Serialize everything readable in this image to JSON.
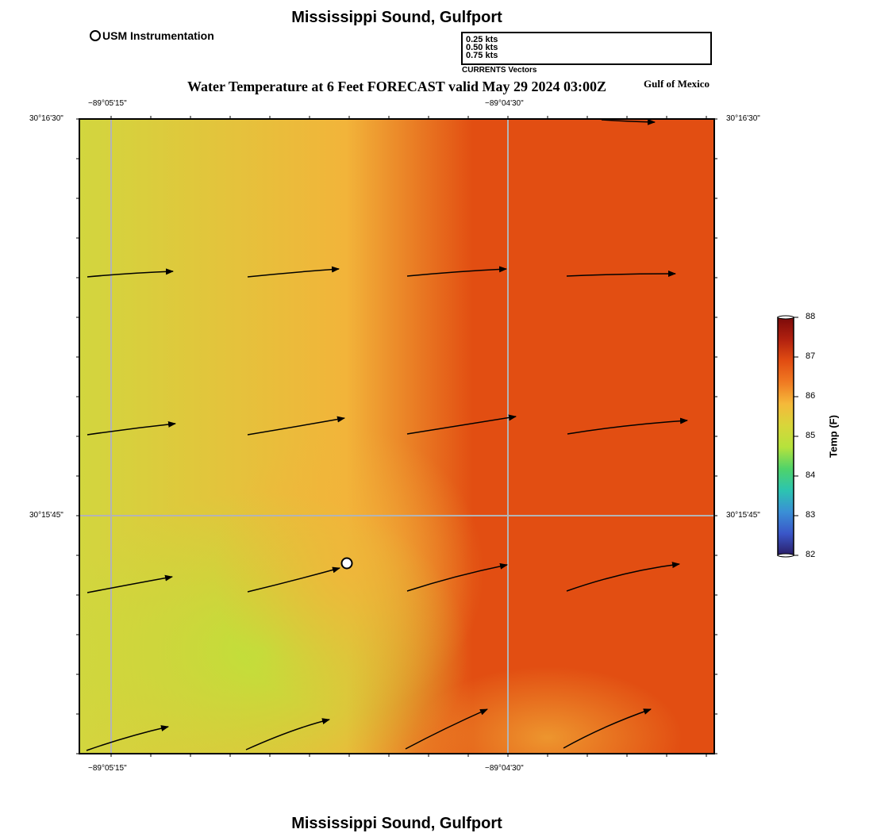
{
  "header": {
    "title": "Mississippi Sound, Gulfport",
    "subtitle": "Water Temperature at 6 Feet FORECAST valid May 29 2024 03:00Z",
    "region": "Gulf of Mexico",
    "station_legend": "USM Instrumentation"
  },
  "footer": {
    "title": "Mississippi Sound, Gulfport"
  },
  "vector_legend": {
    "caption": "CURRENTS Vectors",
    "entries": [
      {
        "label": "0.25 kts",
        "speed": 0.25
      },
      {
        "label": "0.50 kts",
        "speed": 0.5
      },
      {
        "label": "0.75 kts",
        "speed": 0.75
      }
    ]
  },
  "axes": {
    "lon_labels": [
      "−89°05'15\"",
      "−89°04'30\""
    ],
    "lat_labels": [
      "30°16'30\"",
      "30°15'45\""
    ]
  },
  "colorbar": {
    "title": "Temp (F)",
    "min": 82,
    "max": 88,
    "ticks": [
      "88",
      "87",
      "86",
      "85",
      "84",
      "83",
      "82"
    ],
    "colors": [
      "#7a0a0a",
      "#b0200f",
      "#e14c12",
      "#f07a22",
      "#f5b93a",
      "#d8d63a",
      "#b6e23c",
      "#4fd36a",
      "#2cc4b0",
      "#3a8fd6",
      "#3a56c8",
      "#2a1d66"
    ]
  },
  "temperature_field": {
    "west": "#d2d63e",
    "southwest_min": "#bee23a",
    "center": "#f2b43a",
    "east": "#e24e12"
  },
  "station": {
    "name": "USM Instrumentation"
  },
  "currents": [
    {
      "speed_kts": 0.3,
      "dir": "ENE"
    },
    {
      "speed_kts": 0.31,
      "dir": "ENE"
    },
    {
      "speed_kts": 0.32,
      "dir": "ENE"
    },
    {
      "speed_kts": 0.35,
      "dir": "E"
    },
    {
      "speed_kts": 0.31,
      "dir": "ENE"
    },
    {
      "speed_kts": 0.32,
      "dir": "ENE"
    },
    {
      "speed_kts": 0.34,
      "dir": "ENE"
    },
    {
      "speed_kts": 0.39,
      "dir": "ENE"
    },
    {
      "speed_kts": 0.3,
      "dir": "ENE"
    },
    {
      "speed_kts": 0.31,
      "dir": "ENE"
    },
    {
      "speed_kts": 0.32,
      "dir": "ENE"
    },
    {
      "speed_kts": 0.37,
      "dir": "ENE"
    },
    {
      "speed_kts": 0.28,
      "dir": "ENE"
    },
    {
      "speed_kts": 0.3,
      "dir": "ENE"
    },
    {
      "speed_kts": 0.3,
      "dir": "ENE"
    },
    {
      "speed_kts": 0.3,
      "dir": "ENE"
    },
    {
      "speed_kts": 0.18,
      "dir": "E"
    }
  ]
}
